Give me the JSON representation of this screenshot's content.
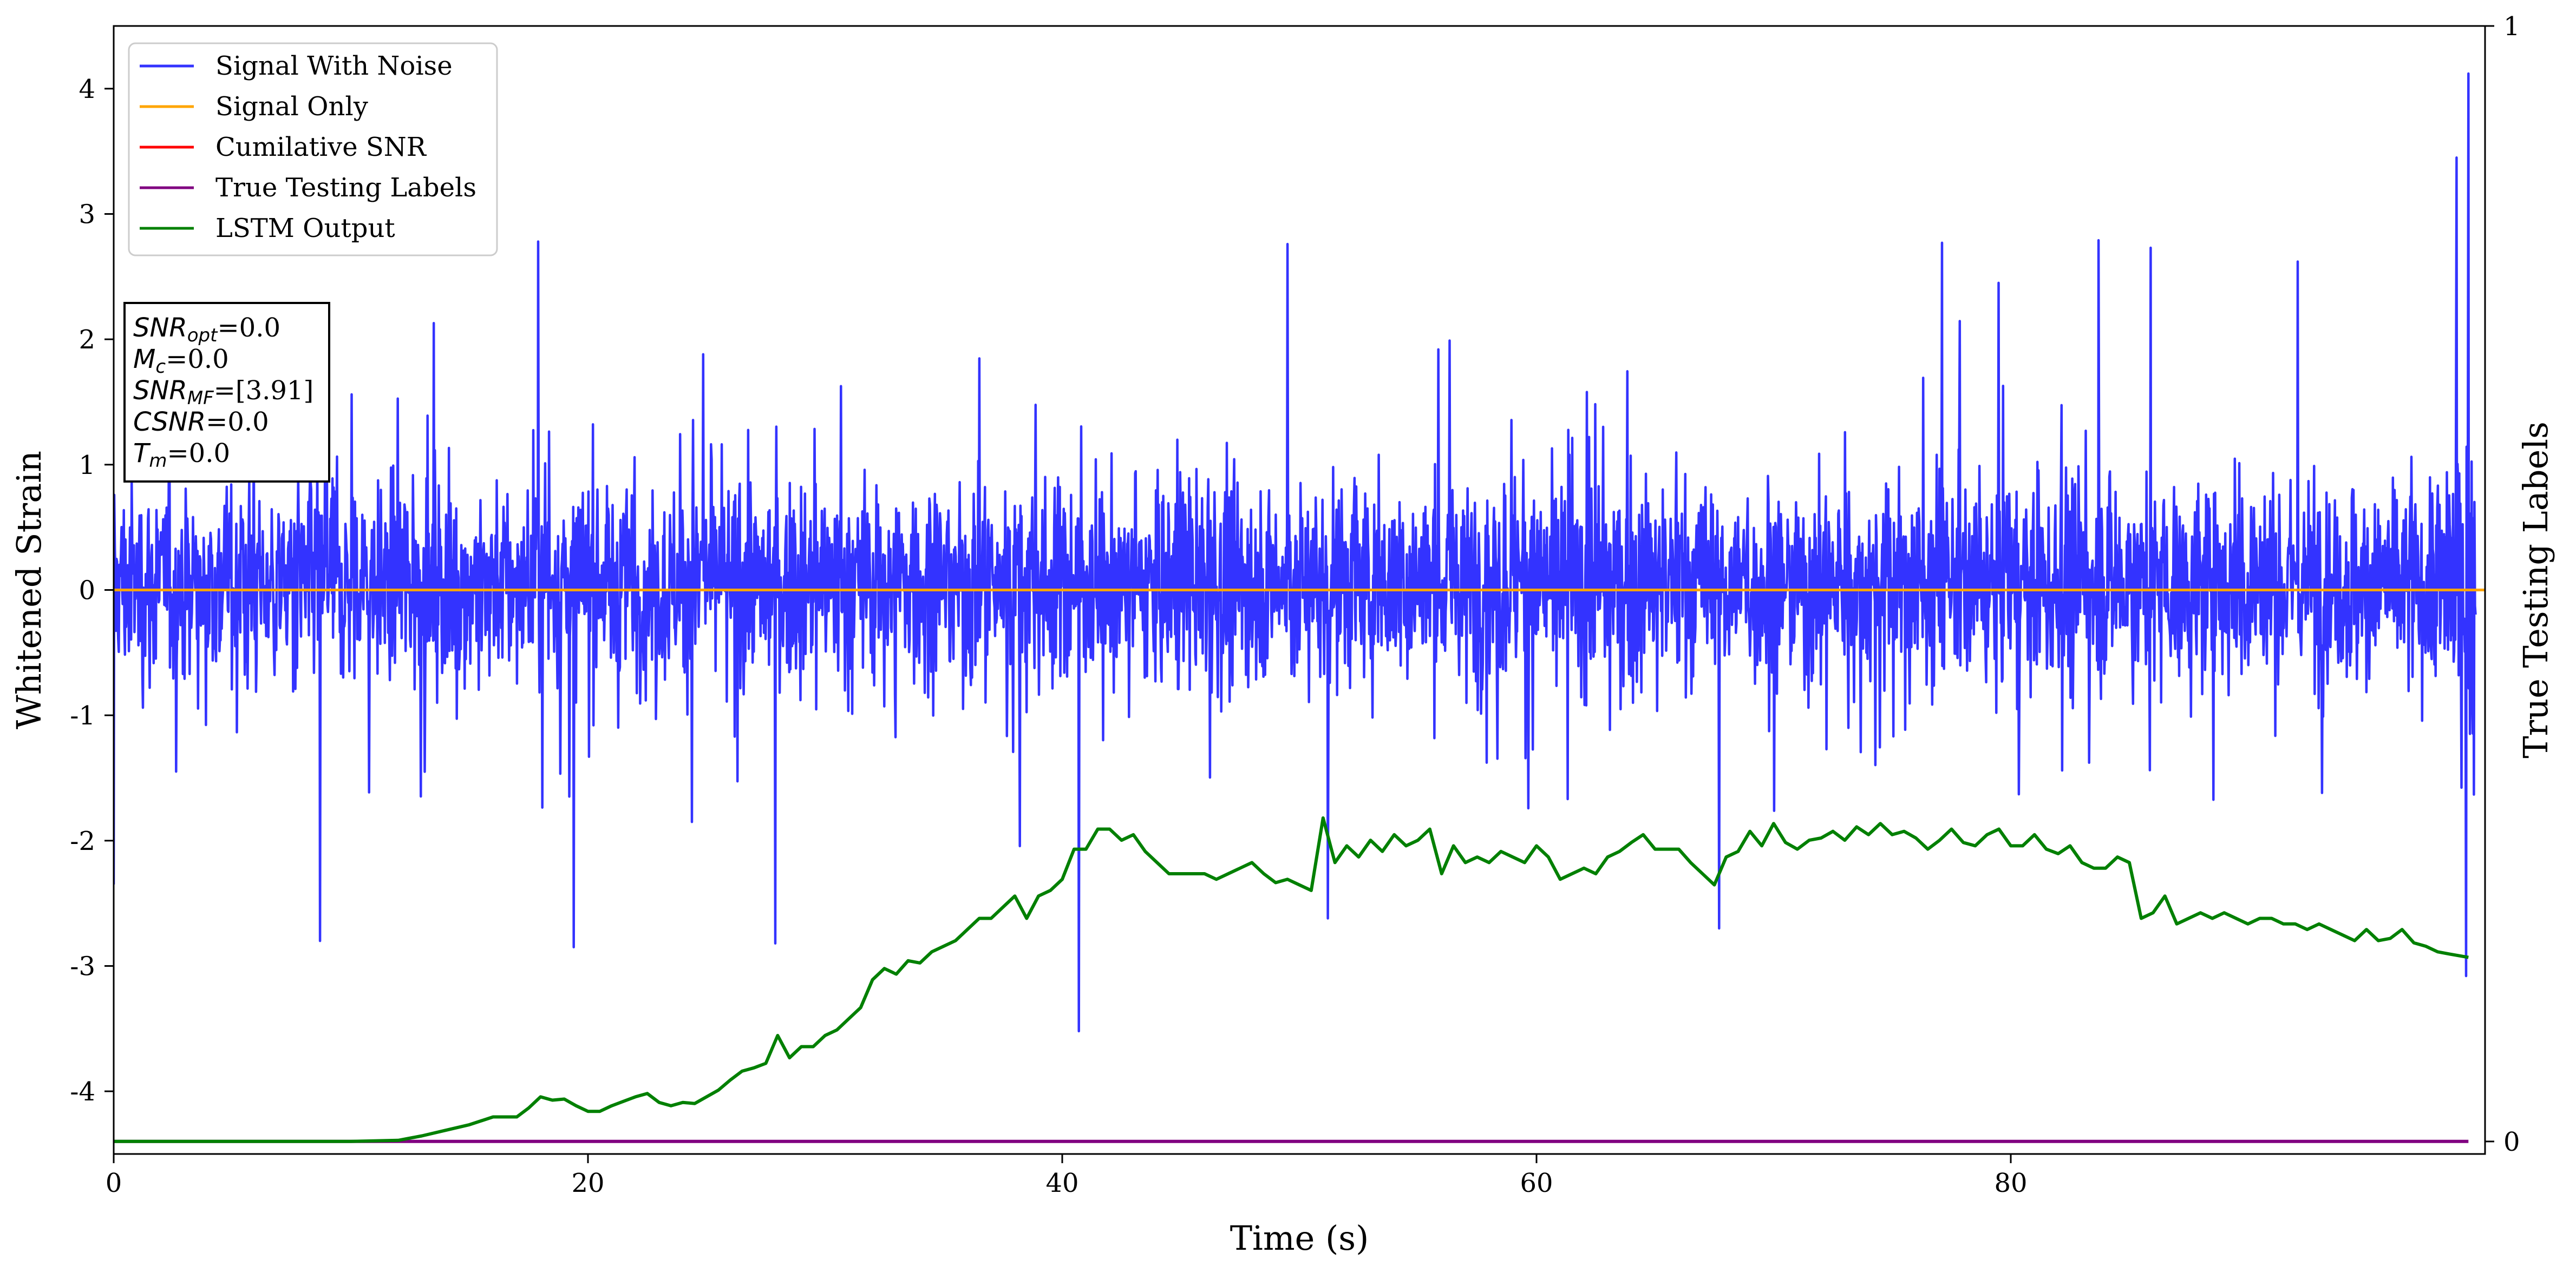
{
  "chart_data": {
    "type": "line",
    "xlabel": "Time (s)",
    "ylabel": "Whitened Strain",
    "ylabel_right": "True Testing Labels",
    "xlim": [
      0,
      100
    ],
    "ylim": [
      -4.5,
      4.5
    ],
    "ylim_right": [
      0,
      1
    ],
    "x_ticks": [
      0,
      20,
      40,
      60,
      80
    ],
    "y_ticks": [
      -4,
      -3,
      -2,
      -1,
      0,
      1,
      2,
      3,
      4
    ],
    "y_ticks_right": [
      0,
      1
    ],
    "grid": false,
    "legend": {
      "placement": "upper-left",
      "entries": [
        {
          "label": "Signal With Noise",
          "color": "#3333ff"
        },
        {
          "label": "Signal Only",
          "color": "#ffa500"
        },
        {
          "label": "Cumilative SNR",
          "color": "#ff0000"
        },
        {
          "label": "True Testing Labels",
          "color": "#800080"
        },
        {
          "label": "LSTM Output",
          "color": "#008000"
        }
      ]
    },
    "annotation": {
      "lines": [
        {
          "italic": "SNR",
          "sub": "opt",
          "rest": "=0.0"
        },
        {
          "italic": "M",
          "sub": "c",
          "rest": "=0.0"
        },
        {
          "italic": "SNR",
          "sub": "MF",
          "rest": "=[3.91]"
        },
        {
          "italic": "CSNR",
          "sub": "",
          "rest": "=0.0"
        },
        {
          "italic": "T",
          "sub": "m",
          "rest": "=0.0"
        }
      ]
    },
    "series": [
      {
        "name": "Signal With Noise",
        "axis": "left",
        "color": "#3333ff",
        "description_stats": {
          "approx_min": -3.52,
          "approx_max": 4.12,
          "typical_range": [
            -1.6,
            2.3
          ]
        },
        "notable_extremes": [
          {
            "x": 0.0,
            "y": -2.35
          },
          {
            "x": 8.7,
            "y": -2.8
          },
          {
            "x": 17.9,
            "y": 2.78
          },
          {
            "x": 19.4,
            "y": -2.85
          },
          {
            "x": 27.9,
            "y": -2.82
          },
          {
            "x": 40.7,
            "y": -3.52
          },
          {
            "x": 49.5,
            "y": 2.76
          },
          {
            "x": 51.2,
            "y": -2.62
          },
          {
            "x": 67.7,
            "y": -2.7
          },
          {
            "x": 77.1,
            "y": 2.77
          },
          {
            "x": 83.7,
            "y": 2.79
          },
          {
            "x": 85.9,
            "y": 2.73
          },
          {
            "x": 92.1,
            "y": 2.62
          },
          {
            "x": 98.8,
            "y": 3.45
          },
          {
            "x": 99.3,
            "y": 4.12
          },
          {
            "x": 99.2,
            "y": -3.08
          }
        ]
      },
      {
        "name": "Signal Only",
        "axis": "left",
        "color": "#ffa500",
        "x": [
          0,
          100
        ],
        "y": [
          0,
          0
        ]
      },
      {
        "name": "Cumilative SNR",
        "axis": "left",
        "color": "#ff0000",
        "x": [
          0,
          100
        ],
        "y": [
          0,
          0
        ]
      },
      {
        "name": "True Testing Labels",
        "axis": "right",
        "color": "#800080",
        "x": [
          0,
          99.3
        ],
        "y": [
          0,
          0
        ]
      },
      {
        "name": "LSTM Output",
        "axis": "right",
        "color": "#008000",
        "x": [
          0,
          5,
          10,
          12,
          13,
          14,
          15,
          16,
          17,
          17.5,
          18,
          18.5,
          19,
          19.5,
          20,
          20.5,
          21,
          22,
          22.5,
          23,
          23.5,
          24,
          24.5,
          25,
          25.5,
          26,
          26.5,
          27,
          27.5,
          28,
          28.5,
          29,
          29.5,
          30,
          30.5,
          31,
          31.5,
          32,
          32.5,
          33,
          33.5,
          34,
          34.5,
          35,
          35.5,
          36,
          36.5,
          37,
          37.5,
          38,
          38.5,
          39,
          39.5,
          40,
          40.5,
          41,
          41.5,
          42,
          42.5,
          43,
          43.5,
          44,
          44.5,
          45,
          45.5,
          46,
          46.5,
          47,
          47.5,
          48,
          48.5,
          49,
          49.5,
          50,
          50.5,
          51,
          51.5,
          52,
          52.5,
          53,
          53.5,
          54,
          54.5,
          55,
          55.5,
          56,
          56.5,
          57,
          57.5,
          58,
          58.5,
          59,
          59.5,
          60,
          60.5,
          61,
          61.5,
          62,
          62.5,
          63,
          63.5,
          64,
          64.5,
          65,
          65.5,
          66,
          66.5,
          67,
          67.5,
          68,
          68.5,
          69,
          69.5,
          70,
          70.5,
          71,
          71.5,
          72,
          72.5,
          73,
          73.5,
          74,
          74.5,
          75,
          75.5,
          76,
          76.5,
          77,
          77.5,
          78,
          78.5,
          79,
          79.5,
          80,
          80.5,
          81,
          81.5,
          82,
          82.5,
          83,
          83.5,
          84,
          84.5,
          85,
          85.5,
          86,
          86.5,
          87,
          87.5,
          88,
          88.5,
          89,
          89.5,
          90,
          90.5,
          91,
          91.5,
          92,
          92.5,
          93,
          93.5,
          94,
          94.5,
          95,
          95.5,
          96,
          96.5,
          97,
          97.5,
          98,
          98.5,
          99.3
        ],
        "y": [
          0,
          0,
          0,
          0.001,
          0.005,
          0.01,
          0.015,
          0.022,
          0.022,
          0.03,
          0.04,
          0.037,
          0.038,
          0.032,
          0.027,
          0.027,
          0.032,
          0.04,
          0.043,
          0.035,
          0.032,
          0.035,
          0.034,
          0.04,
          0.046,
          0.055,
          0.063,
          0.066,
          0.07,
          0.095,
          0.075,
          0.085,
          0.085,
          0.095,
          0.1,
          0.11,
          0.12,
          0.145,
          0.155,
          0.15,
          0.162,
          0.16,
          0.17,
          0.175,
          0.18,
          0.19,
          0.2,
          0.2,
          0.21,
          0.22,
          0.2,
          0.22,
          0.225,
          0.235,
          0.262,
          0.262,
          0.28,
          0.28,
          0.27,
          0.275,
          0.26,
          0.25,
          0.24,
          0.24,
          0.24,
          0.24,
          0.235,
          0.24,
          0.245,
          0.25,
          0.24,
          0.232,
          0.235,
          0.23,
          0.225,
          0.29,
          0.25,
          0.265,
          0.255,
          0.27,
          0.26,
          0.275,
          0.265,
          0.27,
          0.28,
          0.24,
          0.265,
          0.25,
          0.255,
          0.25,
          0.26,
          0.255,
          0.25,
          0.265,
          0.255,
          0.235,
          0.24,
          0.245,
          0.24,
          0.255,
          0.26,
          0.268,
          0.275,
          0.262,
          0.262,
          0.262,
          0.25,
          0.24,
          0.23,
          0.255,
          0.26,
          0.278,
          0.265,
          0.285,
          0.268,
          0.262,
          0.27,
          0.272,
          0.278,
          0.27,
          0.282,
          0.275,
          0.285,
          0.275,
          0.278,
          0.272,
          0.262,
          0.27,
          0.28,
          0.268,
          0.265,
          0.275,
          0.28,
          0.265,
          0.265,
          0.275,
          0.262,
          0.258,
          0.265,
          0.25,
          0.245,
          0.245,
          0.255,
          0.25,
          0.2,
          0.205,
          0.22,
          0.195,
          0.2,
          0.205,
          0.2,
          0.205,
          0.2,
          0.195,
          0.2,
          0.2,
          0.195,
          0.195,
          0.19,
          0.195,
          0.19,
          0.185,
          0.18,
          0.19,
          0.18,
          0.182,
          0.19,
          0.178,
          0.175,
          0.17,
          0.168,
          0.165
        ]
      }
    ]
  }
}
